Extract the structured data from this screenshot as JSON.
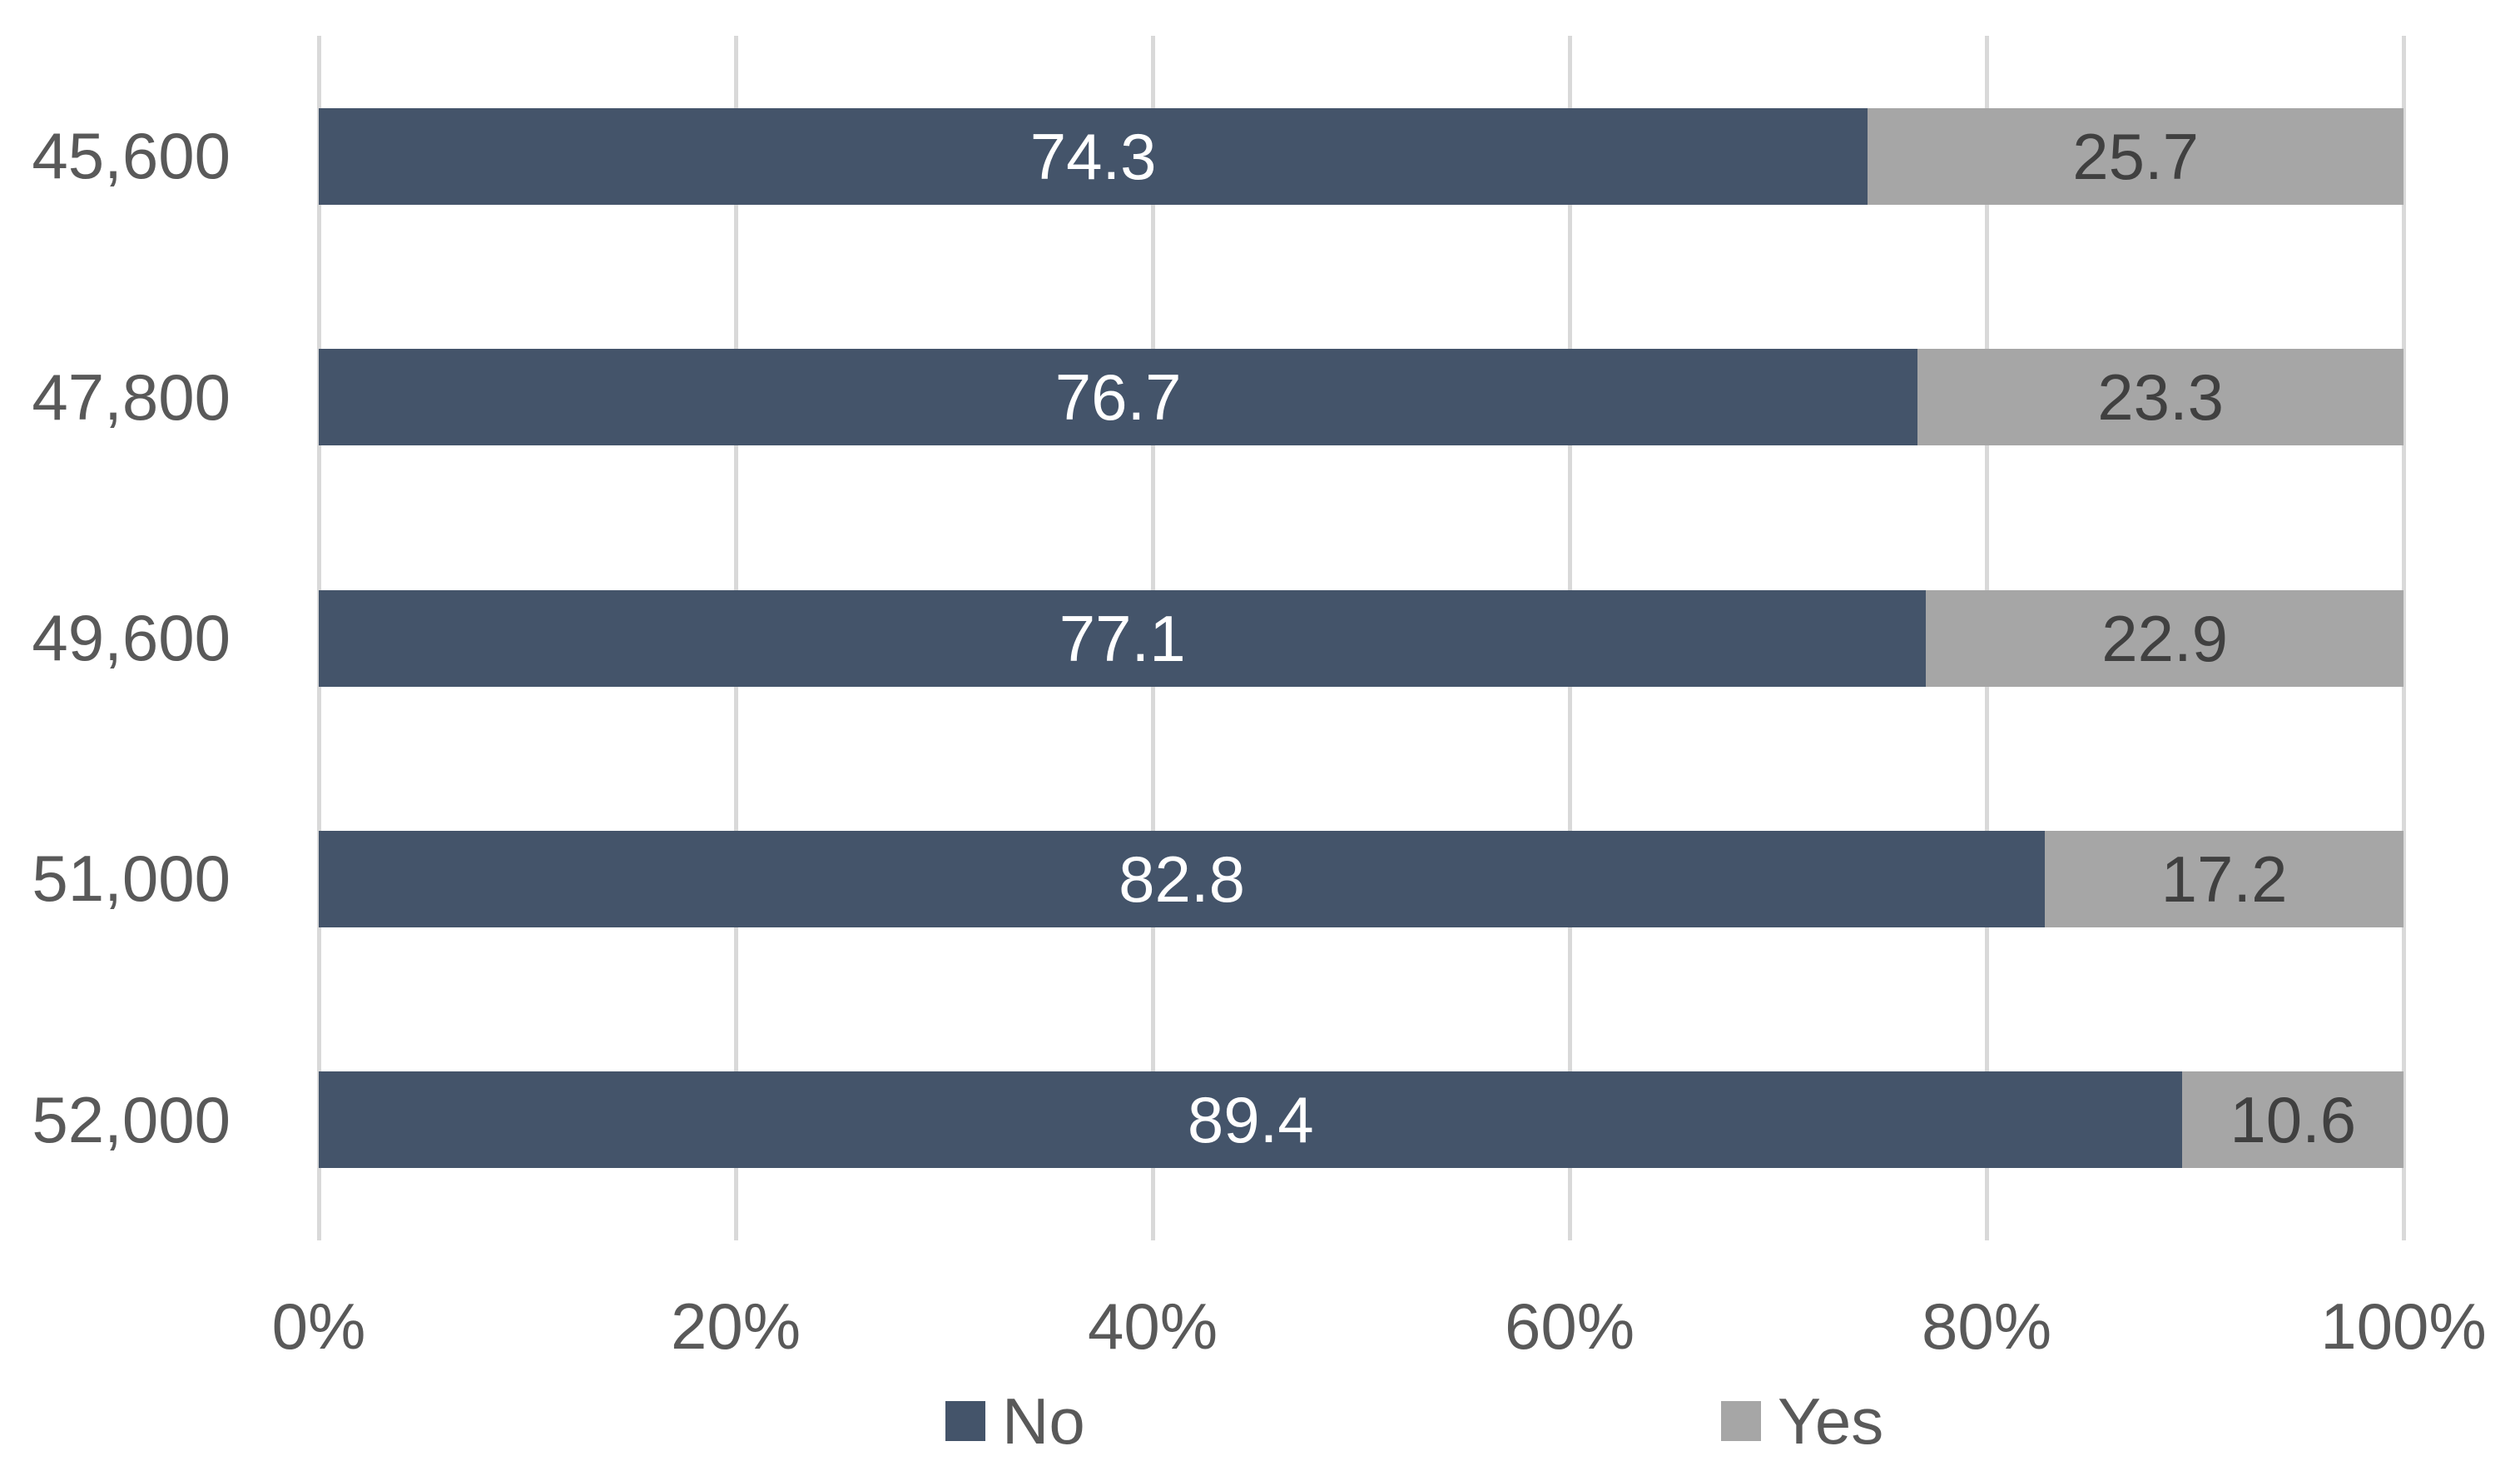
{
  "chart_data": {
    "type": "bar",
    "orientation": "horizontal",
    "stacked": true,
    "unit": "percent",
    "title": "",
    "categories": [
      "45,600",
      "47,800",
      "49,600",
      "51,000",
      "52,000"
    ],
    "series": [
      {
        "name": "No",
        "color": "#44546A",
        "label_color": "#FFFFFF",
        "values": [
          74.3,
          76.7,
          77.1,
          82.8,
          89.4
        ]
      },
      {
        "name": "Yes",
        "color": "#A6A6A6",
        "label_color": "#404040",
        "values": [
          25.7,
          23.3,
          22.9,
          17.2,
          10.6
        ]
      }
    ],
    "x_axis": {
      "ticks": [
        "0%",
        "20%",
        "40%",
        "60%",
        "80%",
        "100%"
      ],
      "tick_values": [
        0,
        20,
        40,
        60,
        80,
        100
      ],
      "range": [
        0,
        100
      ]
    },
    "grid": true,
    "gridline_color": "#D9D9D9",
    "axis_label_color": "#595959",
    "legend": {
      "position": "bottom",
      "entries": [
        "No",
        "Yes"
      ]
    }
  }
}
